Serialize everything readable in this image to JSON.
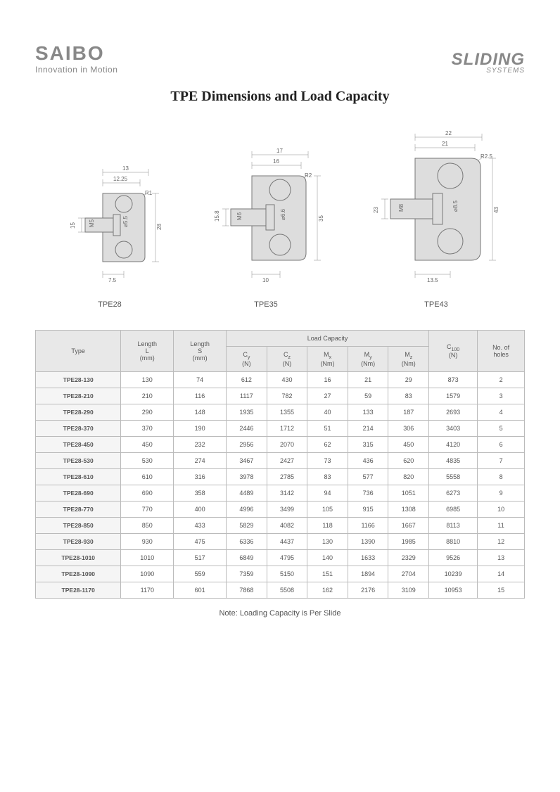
{
  "logos": {
    "saibo": "SAIBO",
    "tagline": "Innovation in Motion",
    "sliding": "SLIDING",
    "systems": "SYSTEMS"
  },
  "title": "TPE  Dimensions and Load Capacity",
  "diagrams": [
    {
      "label": "TPE28",
      "dims": {
        "top1": "13",
        "top2": "12.25",
        "r": "R1",
        "h1": "15",
        "m": "M5",
        "d": "⌀5.5",
        "H": "28",
        "base": "7.5"
      }
    },
    {
      "label": "TPE35",
      "dims": {
        "top1": "17",
        "top2": "16",
        "r": "R2",
        "h1": "15.8",
        "m": "M6",
        "d": "⌀6.6",
        "H": "35",
        "base": "10"
      }
    },
    {
      "label": "TPE43",
      "dims": {
        "top1": "22",
        "top2": "21",
        "r": "R2.5",
        "h1": "23",
        "m": "M8",
        "d": "⌀8.5",
        "H": "43",
        "base": "13.5"
      }
    }
  ],
  "table": {
    "headers": {
      "type": "Type",
      "lengthL": "Length L (mm)",
      "lengthS": "Length S (mm)",
      "loadCap": "Load Capacity",
      "cy": "Cy (N)",
      "cz": "Cz (N)",
      "mx": "Mx (Nm)",
      "my": "My (Nm)",
      "mz": "Mz (Nm)",
      "c100": "C100 (N)",
      "holes": "No. of holes"
    },
    "rows": [
      {
        "type": "TPE28-130",
        "L": "130",
        "S": "74",
        "cy": "612",
        "cz": "430",
        "mx": "16",
        "my": "21",
        "mz": "29",
        "c100": "873",
        "holes": "2"
      },
      {
        "type": "TPE28-210",
        "L": "210",
        "S": "116",
        "cy": "1117",
        "cz": "782",
        "mx": "27",
        "my": "59",
        "mz": "83",
        "c100": "1579",
        "holes": "3"
      },
      {
        "type": "TPE28-290",
        "L": "290",
        "S": "148",
        "cy": "1935",
        "cz": "1355",
        "mx": "40",
        "my": "133",
        "mz": "187",
        "c100": "2693",
        "holes": "4"
      },
      {
        "type": "TPE28-370",
        "L": "370",
        "S": "190",
        "cy": "2446",
        "cz": "1712",
        "mx": "51",
        "my": "214",
        "mz": "306",
        "c100": "3403",
        "holes": "5"
      },
      {
        "type": "TPE28-450",
        "L": "450",
        "S": "232",
        "cy": "2956",
        "cz": "2070",
        "mx": "62",
        "my": "315",
        "mz": "450",
        "c100": "4120",
        "holes": "6"
      },
      {
        "type": "TPE28-530",
        "L": "530",
        "S": "274",
        "cy": "3467",
        "cz": "2427",
        "mx": "73",
        "my": "436",
        "mz": "620",
        "c100": "4835",
        "holes": "7"
      },
      {
        "type": "TPE28-610",
        "L": "610",
        "S": "316",
        "cy": "3978",
        "cz": "2785",
        "mx": "83",
        "my": "577",
        "mz": "820",
        "c100": "5558",
        "holes": "8"
      },
      {
        "type": "TPE28-690",
        "L": "690",
        "S": "358",
        "cy": "4489",
        "cz": "3142",
        "mx": "94",
        "my": "736",
        "mz": "1051",
        "c100": "6273",
        "holes": "9"
      },
      {
        "type": "TPE28-770",
        "L": "770",
        "S": "400",
        "cy": "4996",
        "cz": "3499",
        "mx": "105",
        "my": "915",
        "mz": "1308",
        "c100": "6985",
        "holes": "10"
      },
      {
        "type": "TPE28-850",
        "L": "850",
        "S": "433",
        "cy": "5829",
        "cz": "4082",
        "mx": "118",
        "my": "1166",
        "mz": "1667",
        "c100": "8113",
        "holes": "11"
      },
      {
        "type": "TPE28-930",
        "L": "930",
        "S": "475",
        "cy": "6336",
        "cz": "4437",
        "mx": "130",
        "my": "1390",
        "mz": "1985",
        "c100": "8810",
        "holes": "12"
      },
      {
        "type": "TPE28-1010",
        "L": "1010",
        "S": "517",
        "cy": "6849",
        "cz": "4795",
        "mx": "140",
        "my": "1633",
        "mz": "2329",
        "c100": "9526",
        "holes": "13"
      },
      {
        "type": "TPE28-1090",
        "L": "1090",
        "S": "559",
        "cy": "7359",
        "cz": "5150",
        "mx": "151",
        "my": "1894",
        "mz": "2704",
        "c100": "10239",
        "holes": "14"
      },
      {
        "type": "TPE28-1170",
        "L": "1170",
        "S": "601",
        "cy": "7868",
        "cz": "5508",
        "mx": "162",
        "my": "2176",
        "mz": "3109",
        "c100": "10953",
        "holes": "15"
      }
    ]
  },
  "note": "Note: Loading Capacity is Per Slide"
}
